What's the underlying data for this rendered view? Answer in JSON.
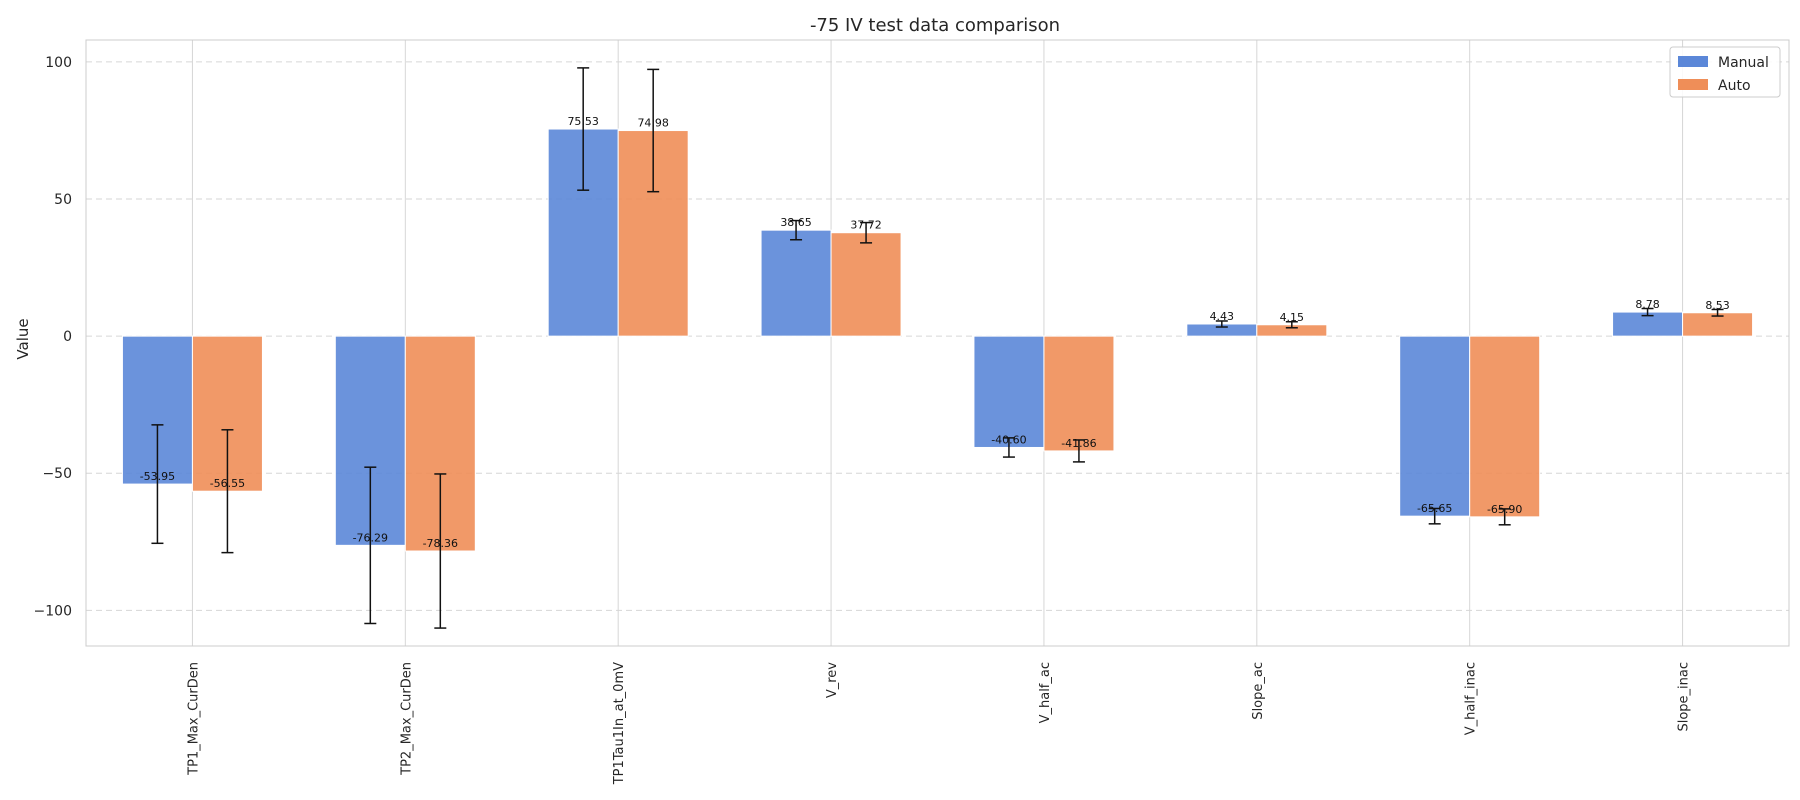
{
  "chart_data": {
    "type": "bar",
    "title": "-75 IV test data comparison",
    "xlabel": "",
    "ylabel": "Value",
    "ylim": [
      -113,
      108
    ],
    "yticks": [
      100,
      50,
      0,
      -50,
      -100
    ],
    "ytick_labels": [
      "100",
      "50",
      "0",
      "−50",
      "−100"
    ],
    "grid": true,
    "legend_position": "top-right",
    "categories": [
      "TP1_Max_CurDen",
      "TP2_Max_CurDen",
      "TP1Tau1In_at_0mV",
      "V_rev",
      "V_half_ac",
      "Slope_ac",
      "V_half_inac",
      "Slope_inac"
    ],
    "series": [
      {
        "name": "Manual",
        "color": "#5b87d8",
        "values": [
          -53.95,
          -76.29,
          75.53,
          38.65,
          -40.6,
          4.43,
          -65.65,
          8.78
        ],
        "value_labels": [
          "-53.95",
          "-76.29",
          "75.53",
          "38.65",
          "-40.60",
          "4.43",
          "-65.65",
          "8.78"
        ],
        "errors": [
          21.6,
          28.5,
          22.3,
          3.5,
          3.5,
          1.1,
          2.8,
          1.3
        ]
      },
      {
        "name": "Auto",
        "color": "#ef8e58",
        "values": [
          -56.55,
          -78.36,
          74.98,
          37.72,
          -41.86,
          4.15,
          -65.9,
          8.53
        ],
        "value_labels": [
          "-56.55",
          "-78.36",
          "74.98",
          "37.72",
          "-41.86",
          "4.15",
          "-65.90",
          "8.53"
        ],
        "errors": [
          22.4,
          28.1,
          22.3,
          3.7,
          4.0,
          1.1,
          2.9,
          1.2
        ]
      }
    ]
  }
}
